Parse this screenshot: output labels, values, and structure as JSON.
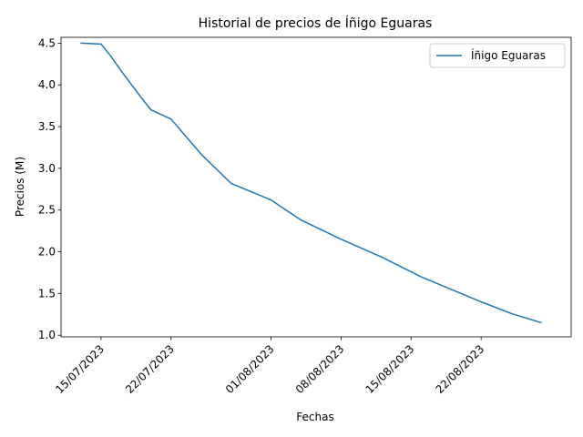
{
  "chart_data": {
    "type": "line",
    "title": "Historial de precios de Íñigo Eguaras",
    "xlabel": "Fechas",
    "ylabel": "Precios (M)",
    "xlim": [
      "2023-07-11",
      "2023-08-31"
    ],
    "ylim": [
      0.98,
      4.57
    ],
    "x_ticks": [
      {
        "date": "2023-07-15",
        "label": "15/07/2023"
      },
      {
        "date": "2023-07-22",
        "label": "22/07/2023"
      },
      {
        "date": "2023-08-01",
        "label": "01/08/2023"
      },
      {
        "date": "2023-08-08",
        "label": "08/08/2023"
      },
      {
        "date": "2023-08-15",
        "label": "15/08/2023"
      },
      {
        "date": "2023-08-22",
        "label": "22/08/2023"
      }
    ],
    "y_ticks": [
      1.0,
      1.5,
      2.0,
      2.5,
      3.0,
      3.5,
      4.0,
      4.5
    ],
    "grid": false,
    "legend_position": "upper right",
    "series": [
      {
        "name": "Íñigo Eguaras",
        "color": "#1f77b4",
        "x": [
          "2023-07-13",
          "2023-07-15",
          "2023-07-16",
          "2023-07-17",
          "2023-07-18",
          "2023-07-19",
          "2023-07-20",
          "2023-07-22",
          "2023-07-25",
          "2023-07-28",
          "2023-08-01",
          "2023-08-04",
          "2023-08-08",
          "2023-08-12",
          "2023-08-16",
          "2023-08-19",
          "2023-08-22",
          "2023-08-25",
          "2023-08-28"
        ],
        "values": [
          4.5,
          4.49,
          4.34,
          4.17,
          4.01,
          3.85,
          3.7,
          3.59,
          3.17,
          2.82,
          2.62,
          2.38,
          2.15,
          1.94,
          1.7,
          1.55,
          1.4,
          1.26,
          1.15
        ]
      }
    ]
  }
}
